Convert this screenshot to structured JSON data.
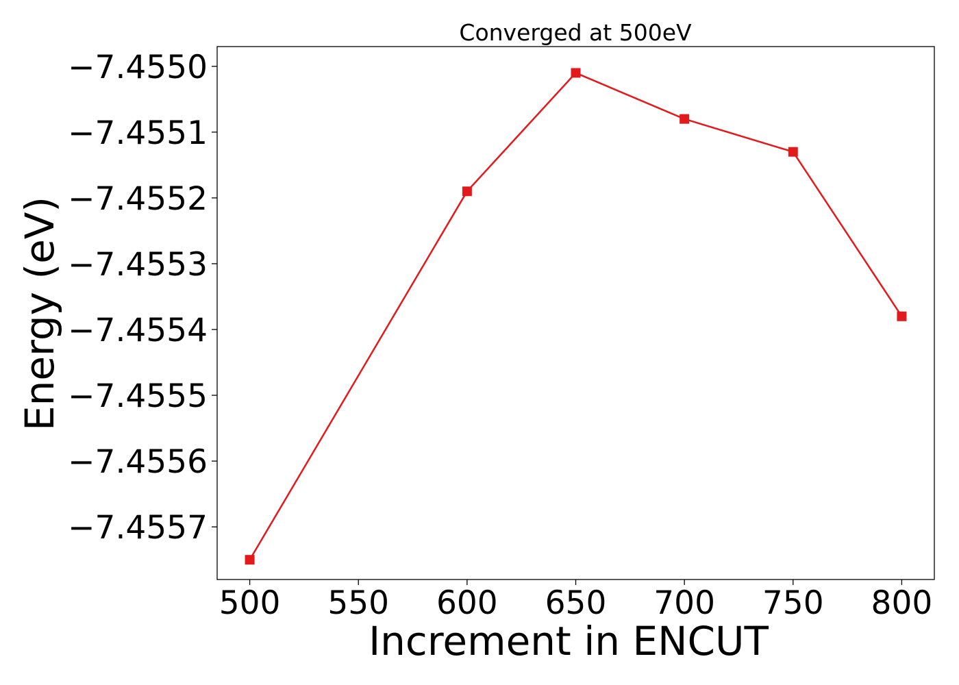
{
  "chart_data": {
    "type": "line",
    "title": "Converged at 500eV",
    "xlabel": "Increment in ENCUT",
    "ylabel": "Energy (eV)",
    "x": [
      500,
      600,
      650,
      700,
      750,
      800
    ],
    "series": [
      {
        "values": [
          -7.45575,
          -7.45519,
          -7.45501,
          -7.45508,
          -7.45513,
          -7.45538
        ],
        "color": "#e31a1c",
        "marker": "square"
      }
    ],
    "xticks": [
      500,
      550,
      600,
      650,
      700,
      750,
      800
    ],
    "xtick_labels": [
      "500",
      "550",
      "600",
      "650",
      "700",
      "750",
      "800"
    ],
    "yticks": [
      -7.4557,
      -7.4556,
      -7.4555,
      -7.4554,
      -7.4553,
      -7.4552,
      -7.4551,
      -7.455
    ],
    "ytick_labels": [
      "−7.4557",
      "−7.4556",
      "−7.4555",
      "−7.4554",
      "−7.4553",
      "−7.4552",
      "−7.4551",
      "−7.4550"
    ],
    "xlim": [
      485,
      815
    ],
    "ylim": [
      -7.45578,
      -7.45497
    ],
    "grid": false,
    "legend": "none"
  }
}
